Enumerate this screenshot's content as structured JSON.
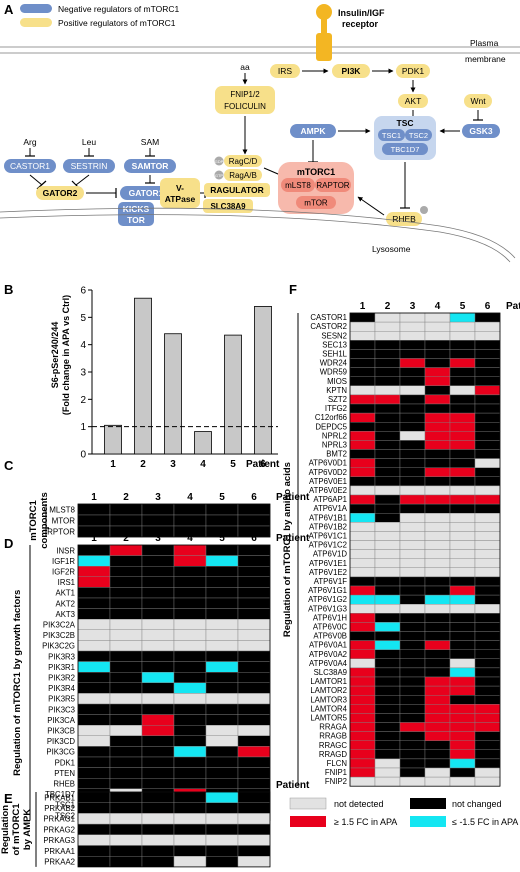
{
  "panels": {
    "A": "A",
    "B": "B",
    "C": "C",
    "D": "D",
    "E": "E",
    "F": "F"
  },
  "colors": {
    "negative": "#6f8fc9",
    "positive": "#f7e08a",
    "red": "#e8001c",
    "cyan": "#14e6f2",
    "black": "#000000",
    "grey": "#e2e2e2",
    "pink": "#f7b9ac",
    "tsc": "#c6d6ee"
  },
  "legend_top": {
    "negative": "Negative regulators of mTORC1",
    "positive": "Positive regulators of mTORC1"
  },
  "pathway": {
    "insulin_receptor": "Insulin/IGF receptor",
    "plasma_membrane": "Plasma membrane",
    "lysosome": "Lysosome",
    "IRS": "IRS",
    "PI3K": "PI3K",
    "PDK1": "PDK1",
    "AKT": "AKT",
    "Wnt": "Wnt",
    "GSK3": "GSK3",
    "AMPK": "AMPK",
    "aa": "aa",
    "FNIP": "FNIP1/2",
    "FOLICULIN": "FOLICULIN",
    "TSC": "TSC",
    "TSC1": "TSC1",
    "TSC2": "TSC2",
    "TBC1D7": "TBC1D7",
    "Arg": "Arg",
    "Leu": "Leu",
    "SAM": "SAM",
    "CASTOR1": "CASTOR1",
    "SESTRIN": "SESTRIN",
    "SAMTOR": "SAMTOR",
    "GATOR2": "GATOR2",
    "GATOR1": "GATOR1",
    "KICKSTOR": "KICKS TOR",
    "GDP": "GDP",
    "GTP": "GTP",
    "RagCD": "RagC/D",
    "RagAB": "RagA/B",
    "RAGULATOR": "RAGULATOR",
    "VATPase": "V- ATPase",
    "SLC38A9": "SLC38A9",
    "mTORC1": "mTORC1",
    "mLST8": "mLST8",
    "RAPTOR": "RAPTOR",
    "mTOR": "mTOR",
    "RHEB": "RHEB"
  },
  "patient_label": "Patient",
  "patients": [
    "1",
    "2",
    "3",
    "4",
    "5",
    "6"
  ],
  "chart_data": {
    "type": "bar",
    "categories": [
      "1",
      "2",
      "3",
      "4",
      "5",
      "6"
    ],
    "values": [
      1.05,
      5.7,
      4.4,
      0.82,
      4.35,
      5.4
    ],
    "ylabel": "S6-pSer240/244 (Fold change in APA vs Ctrl)",
    "xlabel": "Patient",
    "ylim": [
      0,
      6
    ],
    "yticks": [
      "0",
      "1",
      "2",
      "3",
      "4",
      "5",
      "6"
    ],
    "reference_line": 1
  },
  "heat_C": {
    "ylabel": "mTORC1 components",
    "rows": [
      "MLST8",
      "MTOR",
      "RPTOR"
    ],
    "cells": [
      "KKKKKK",
      "KKKKKK",
      "KKKKKK"
    ]
  },
  "heat_D": {
    "ylabel": "Regulation of mTORC1 by growth factors",
    "rows": [
      "INSR",
      "IGF1R",
      "IGF2R",
      "IRS1",
      "AKT1",
      "AKT2",
      "AKT3",
      "PIK3C2A",
      "PIK3C2B",
      "PIK3C2G",
      "PIK3R3",
      "PIK3R1",
      "PIK3R2",
      "PIK3R4",
      "PIK3R5",
      "PIK3C3",
      "PIK3CA",
      "PIK3CB",
      "PIK3CD",
      "PIK3CG",
      "PDK1",
      "PTEN",
      "RHEB",
      "TBC1D7",
      "TSC1",
      "TSC2"
    ],
    "cells": [
      "KRKRKK",
      "CKKRCK",
      "RKKKKK",
      "RKKKKK",
      "KKKKKK",
      "KKKKKK",
      "KKKKKK",
      "GGGGGG",
      "GGGGGG",
      "GGGGGG",
      "KKKKKK",
      "CKKKCK",
      "KKCKKK",
      "KKKCKK",
      "GGGGGG",
      "KKKKKK",
      "KKRKKK",
      "GGRKGG",
      "GKKKGK",
      "KKKCKR",
      "KKKKKK",
      "KKKKKK",
      "KKKKKK",
      "KGKRKK",
      "KKKGKG",
      "KKRKKK"
    ]
  },
  "heat_E": {
    "ylabel": "Regulation of mTORC1 by AMPK",
    "rows": [
      "PRKAB1",
      "PRKAB2",
      "PRKAG1",
      "PRKAG2",
      "PRKAG3",
      "PRKAA1",
      "PRKAA2"
    ],
    "cells": [
      "KKKKCK",
      "KKKKKK",
      "GGGGGG",
      "KKKKKK",
      "GGGGGG",
      "KKKKKK",
      "KKKGKG"
    ]
  },
  "heat_F": {
    "ylabel": "Regulation of mTORC1 by amino acids",
    "rows": [
      "CASTOR1",
      "CASTOR2",
      "SESN2",
      "SEC13",
      "SEH1L",
      "WDR24",
      "WDR59",
      "MIOS",
      "KPTN",
      "SZT2",
      "ITFG2",
      "C12orf66",
      "DEPDC5",
      "NPRL2",
      "NPRL3",
      "BMT2",
      "ATP6V0D1",
      "ATP6V0D2",
      "ATP6V0E1",
      "ATP6V0E2",
      "ATP6AP1",
      "ATP6V1A",
      "ATP6V1B1",
      "ATP6V1B2",
      "ATP6V1C1",
      "ATP6V1C2",
      "ATP6V1D",
      "ATP6V1E1",
      "ATP6V1E2",
      "ATP6V1F",
      "ATP6V1G1",
      "ATP6V1G2",
      "ATP6V1G3",
      "ATP6V1H",
      "ATP6V0C",
      "ATP6V0B",
      "ATP6V0A1",
      "ATP6V0A2",
      "ATP6V0A4",
      "SLC38A9",
      "LAMTOR1",
      "LAMTOR2",
      "LAMTOR3",
      "LAMTOR4",
      "LAMTOR5",
      "RRAGA",
      "RRAGB",
      "RRAGC",
      "RRAGD",
      "FLCN",
      "FNIP1",
      "FNIP2"
    ],
    "cells": [
      "KGGGCK",
      "GGGGGG",
      "GGGGGG",
      "KKKKKK",
      "KKKKKK",
      "KKRKRK",
      "KKKRKK",
      "KKKRKK",
      "GGGKGR",
      "RRKRKK",
      "KKKKKK",
      "RKKRRK",
      "KKKRRK",
      "RKGRRK",
      "RKKRRK",
      "KKKKKK",
      "RKKKKG",
      "RKKRRK",
      "KKKKKK",
      "GGGGGG",
      "RKRRRR",
      "KKKKKK",
      "CKGGGG",
      "GGGGGG",
      "GGGGGG",
      "GGGGGG",
      "GGGGGG",
      "GGGGGG",
      "GGGGGG",
      "KKKKKK",
      "RKKKRK",
      "CCKCCK",
      "GGGGGG",
      "RKKKKK",
      "RCKKKK",
      "KKKKKK",
      "RCKRKK",
      "RKKKKK",
      "GKKKGK",
      "RKKKCK",
      "RKKRRK",
      "RKKRRK",
      "RKKRKK",
      "RKKRRR",
      "RKKRRR",
      "RKRRRR",
      "RKKRRK",
      "RKKKRK",
      "RKKKRK",
      "RGKKCK",
      "RGKGKG",
      "GGGGGG"
    ]
  },
  "legend_bottom": {
    "not_detected": "not detected",
    "not_changed": "not changed",
    "up": "≥ 1.5 FC in APA",
    "down": "≤ -1.5 FC in APA"
  }
}
